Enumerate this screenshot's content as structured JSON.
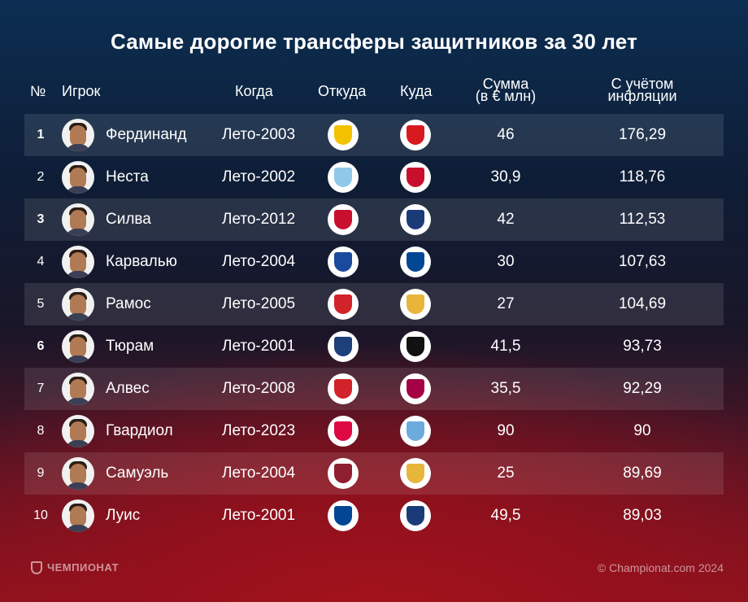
{
  "title": "Самые дорогие трансферы защитников за 30 лет",
  "columns": {
    "num": "№",
    "player": "Игрок",
    "when": "Когда",
    "from": "Откуда",
    "to": "Куда",
    "sum_line1": "Сумма",
    "sum_line2": "(в € млн)",
    "infl_line1": "С учётом",
    "infl_line2": "инфляции"
  },
  "rows": [
    {
      "num": "1",
      "player": "Фердинанд",
      "when": "Лето-2003",
      "from": "leeds-crest-icon",
      "to": "man-united-crest-icon",
      "sum": "46",
      "infl": "176,29",
      "from_color": "#f2c200",
      "to_color": "#d81920"
    },
    {
      "num": "2",
      "player": "Неста",
      "when": "Лето-2002",
      "from": "lazio-crest-icon",
      "to": "milan-crest-icon",
      "sum": "30,9",
      "infl": "118,76",
      "from_color": "#8fc9ea",
      "to_color": "#c8102e"
    },
    {
      "num": "3",
      "player": "Силва",
      "when": "Лето-2012",
      "from": "milan-crest-icon",
      "to": "psg-crest-icon",
      "sum": "42",
      "infl": "112,53",
      "from_color": "#c8102e",
      "to_color": "#1b3a78"
    },
    {
      "num": "4",
      "player": "Карвалью",
      "when": "Лето-2004",
      "from": "porto-crest-icon",
      "to": "chelsea-crest-icon",
      "sum": "30",
      "infl": "107,63",
      "from_color": "#1a4a9c",
      "to_color": "#034694"
    },
    {
      "num": "5",
      "player": "Рамос",
      "when": "Лето-2005",
      "from": "sevilla-crest-icon",
      "to": "real-madrid-crest-icon",
      "sum": "27",
      "infl": "104,69",
      "from_color": "#d2232a",
      "to_color": "#e6b53a"
    },
    {
      "num": "6",
      "player": "Тюрам",
      "when": "Лето-2001",
      "from": "parma-crest-icon",
      "to": "juventus-crest-icon",
      "sum": "41,5",
      "infl": "93,73",
      "from_color": "#1d3f7a",
      "to_color": "#111111"
    },
    {
      "num": "7",
      "player": "Алвес",
      "when": "Лето-2008",
      "from": "sevilla-crest-icon",
      "to": "barcelona-crest-icon",
      "sum": "35,5",
      "infl": "92,29",
      "from_color": "#d2232a",
      "to_color": "#a50044"
    },
    {
      "num": "8",
      "player": "Гвардиол",
      "when": "Лето-2023",
      "from": "leipzig-crest-icon",
      "to": "man-city-crest-icon",
      "sum": "90",
      "infl": "90",
      "from_color": "#dd0741",
      "to_color": "#6cabdd"
    },
    {
      "num": "9",
      "player": "Самуэль",
      "when": "Лето-2004",
      "from": "roma-crest-icon",
      "to": "real-madrid-crest-icon",
      "sum": "25",
      "infl": "89,69",
      "from_color": "#8e1f2f",
      "to_color": "#e6b53a"
    },
    {
      "num": "10",
      "player": "Луис",
      "when": "Лето-2001",
      "from": "chelsea-crest-icon",
      "to": "psg-crest-icon",
      "sum": "49,5",
      "infl": "89,03",
      "from_color": "#034694",
      "to_color": "#1b3a78"
    }
  ],
  "footer": {
    "brand": "ЧЕМПИОНАТ",
    "copyright": "© Championat.com 2024"
  }
}
